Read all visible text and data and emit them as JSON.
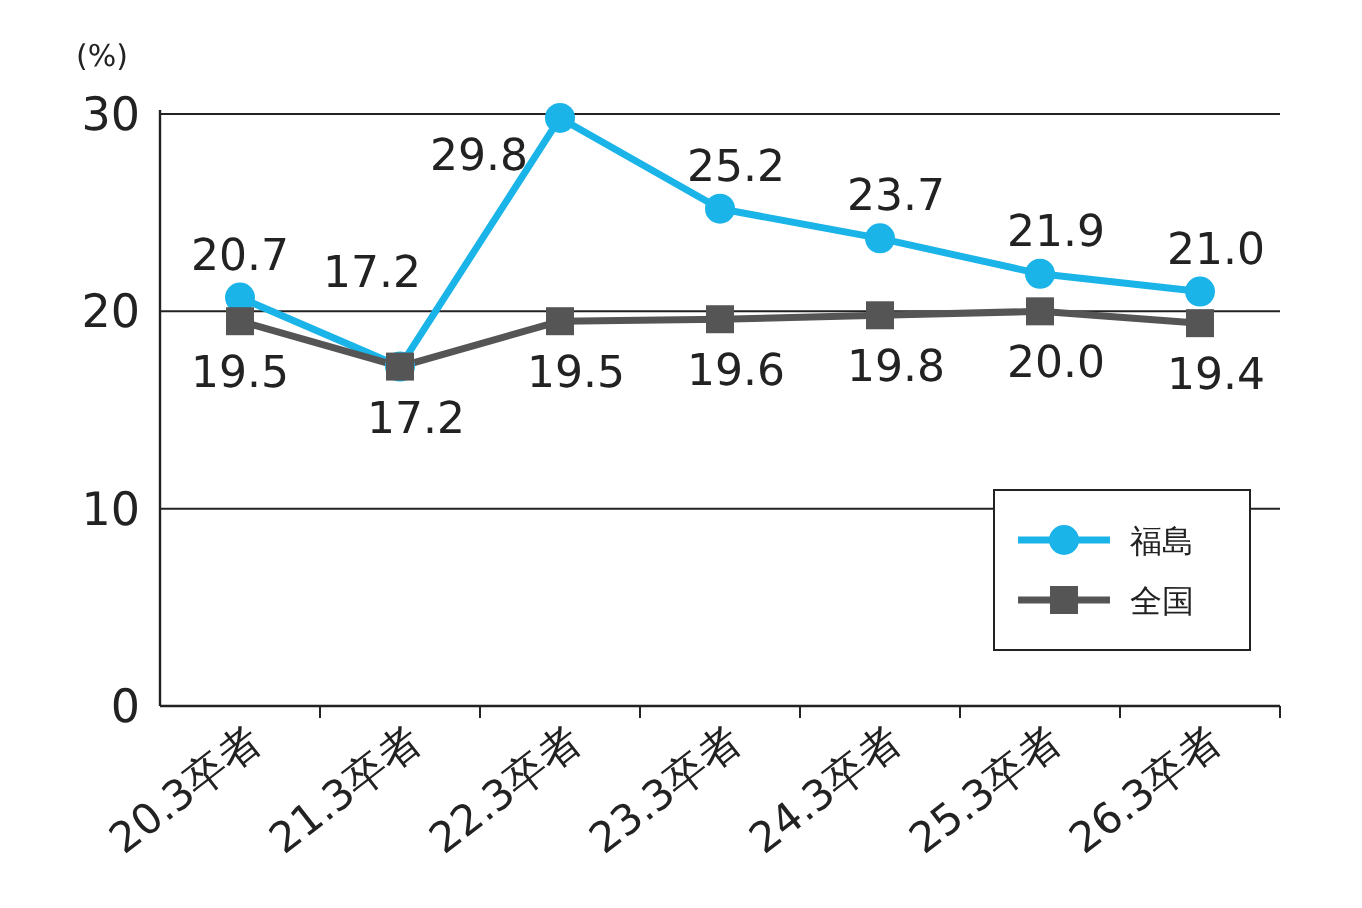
{
  "chart_data": {
    "type": "line",
    "ylabel": "(%)",
    "categories": [
      "20.3卒者",
      "21.3卒者",
      "22.3卒者",
      "23.3卒者",
      "24.3卒者",
      "25.3卒者",
      "26.3卒者"
    ],
    "series": [
      {
        "name": "福島",
        "color": "#1ab4e8",
        "marker": "circle",
        "values": [
          20.7,
          17.2,
          29.8,
          25.2,
          23.7,
          21.9,
          21.0
        ],
        "value_labels": [
          "20.7",
          "17.2",
          "29.8",
          "25.2",
          "23.7",
          "21.9",
          "21.0"
        ]
      },
      {
        "name": "全国",
        "color": "#555555",
        "marker": "square",
        "values": [
          19.5,
          17.2,
          19.5,
          19.6,
          19.8,
          20.0,
          19.4
        ],
        "value_labels": [
          "19.5",
          "17.2",
          "19.5",
          "19.6",
          "19.8",
          "20.0",
          "19.4"
        ]
      }
    ],
    "ylim": [
      0,
      30
    ],
    "yticks": [
      0,
      10,
      20,
      30
    ],
    "grid": "y",
    "legend": "bottom right"
  }
}
